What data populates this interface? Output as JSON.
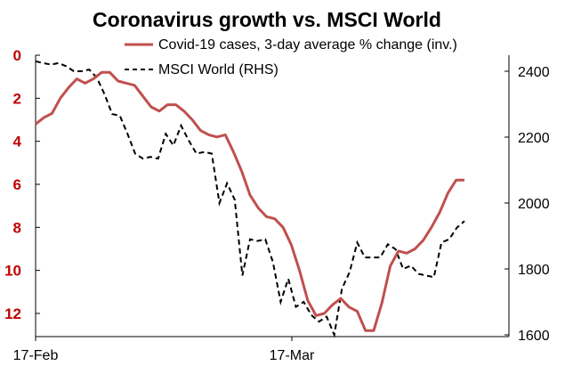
{
  "chart_data": {
    "type": "line",
    "title": "Coronavirus growth vs. MSCI World",
    "x_tick_labels": [
      "17-Feb",
      "17-Mar"
    ],
    "legend": {
      "placement": "top",
      "entries": [
        {
          "name": "Covid-19 cases, 3-day average % change (inv.)",
          "color": "#c0504d",
          "style": "solid"
        },
        {
          "name": "MSCI World (RHS)",
          "color": "#000000",
          "style": "dashed"
        }
      ]
    },
    "left_axis": {
      "ticks": [
        "0",
        "2",
        "4",
        "6",
        "8",
        "10",
        "12"
      ],
      "range": [
        0,
        13
      ],
      "inverted": true,
      "color": "#c00000"
    },
    "right_axis": {
      "ticks": [
        "1600",
        "1800",
        "2000",
        "2200",
        "2400"
      ],
      "range": [
        1600,
        2440
      ]
    },
    "grid": false,
    "series": [
      {
        "name": "Covid-19 cases, 3-day average % change (inv.)",
        "axis": "left",
        "color": "#c0504d",
        "values": [
          3.2,
          2.9,
          2.7,
          2.0,
          1.5,
          1.1,
          1.3,
          1.1,
          0.8,
          0.8,
          1.2,
          1.3,
          1.4,
          1.9,
          2.4,
          2.6,
          2.3,
          2.3,
          2.6,
          3.0,
          3.5,
          3.7,
          3.8,
          3.7,
          4.5,
          5.4,
          6.5,
          7.1,
          7.5,
          7.6,
          8.0,
          8.8,
          10.0,
          11.4,
          12.1,
          12.0,
          11.6,
          11.3,
          11.7,
          11.9,
          12.8,
          12.8,
          11.5,
          9.8,
          9.1,
          9.2,
          9.0,
          8.6,
          8.0,
          7.3,
          6.4,
          5.8,
          5.8
        ]
      },
      {
        "name": "MSCI World (RHS)",
        "axis": "right",
        "color": "#000000",
        "values": [
          2430,
          2425,
          2420,
          2425,
          2415,
          2400,
          2400,
          2405,
          2380,
          2330,
          2270,
          2265,
          2210,
          2150,
          2135,
          2140,
          2135,
          2210,
          2175,
          2235,
          2190,
          2150,
          2155,
          2150,
          2000,
          2060,
          2010,
          1780,
          1890,
          1885,
          1890,
          1820,
          1700,
          1770,
          1685,
          1700,
          1660,
          1640,
          1655,
          1600,
          1740,
          1790,
          1880,
          1835,
          1835,
          1835,
          1875,
          1860,
          1800,
          1810,
          1785,
          1780,
          1775,
          1880,
          1890,
          1925,
          1945
        ]
      }
    ]
  }
}
